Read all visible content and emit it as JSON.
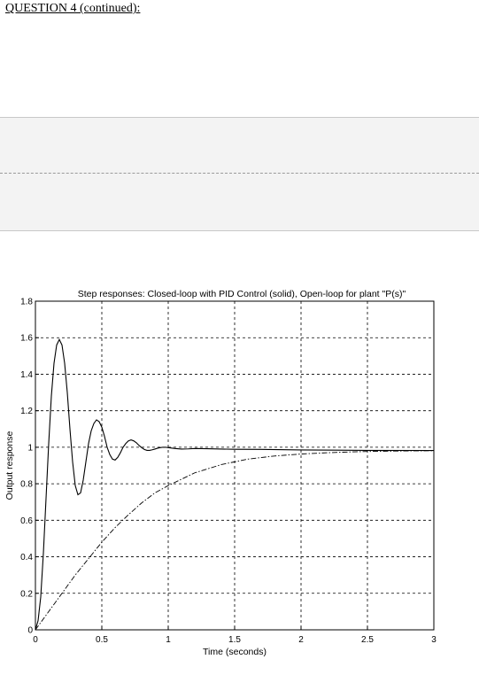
{
  "page": {
    "heading": "QUESTION 4 (continued):"
  },
  "colors": {
    "band": "#f3f3f3",
    "grid": "#000000",
    "line": "#000000"
  },
  "chart_data": {
    "type": "line",
    "title": "Step responses:  Closed-loop with PID Control (solid), Open-loop for plant \"P(s)\"",
    "xlabel": "Time (seconds)",
    "ylabel": "Output response",
    "xlim": [
      0,
      3
    ],
    "ylim": [
      0,
      1.8
    ],
    "grid": true,
    "legend": "none",
    "x_ticks": [
      0,
      0.5,
      1,
      1.5,
      2,
      2.5,
      3
    ],
    "x_tick_labels": [
      "0",
      "0.5",
      "1",
      "1.5",
      "2",
      "2.5",
      "3"
    ],
    "y_ticks": [
      0,
      0.2,
      0.4,
      0.6,
      0.8,
      1,
      1.2,
      1.4,
      1.6,
      1.8
    ],
    "y_tick_labels": [
      "0",
      "0.2",
      "0.4",
      "0.6",
      "0.8",
      "1",
      "1.2",
      "1.4",
      "1.6",
      "1.8"
    ],
    "series": [
      {
        "style": "solid",
        "x": [
          0,
          0.02,
          0.04,
          0.06,
          0.08,
          0.1,
          0.12,
          0.14,
          0.16,
          0.18,
          0.2,
          0.22,
          0.24,
          0.26,
          0.28,
          0.3,
          0.32,
          0.34,
          0.36,
          0.38,
          0.4,
          0.42,
          0.44,
          0.46,
          0.48,
          0.5,
          0.52,
          0.54,
          0.56,
          0.58,
          0.6,
          0.62,
          0.64,
          0.66,
          0.68,
          0.7,
          0.72,
          0.74,
          0.76,
          0.78,
          0.8,
          0.82,
          0.84,
          0.86,
          0.88,
          0.9,
          0.92,
          0.94,
          0.96,
          0.98,
          1.0,
          1.05,
          1.1,
          1.15,
          1.2,
          1.3,
          1.4,
          1.5,
          1.7,
          2.0,
          2.5,
          3.0
        ],
        "y": [
          0,
          0.05,
          0.18,
          0.42,
          0.72,
          1.02,
          1.28,
          1.46,
          1.56,
          1.59,
          1.56,
          1.46,
          1.3,
          1.1,
          0.92,
          0.79,
          0.74,
          0.75,
          0.82,
          0.92,
          1.02,
          1.09,
          1.13,
          1.15,
          1.14,
          1.11,
          1.06,
          1.0,
          0.96,
          0.935,
          0.93,
          0.945,
          0.97,
          1.0,
          1.02,
          1.035,
          1.04,
          1.035,
          1.025,
          1.01,
          0.998,
          0.988,
          0.983,
          0.983,
          0.986,
          0.99,
          0.995,
          0.998,
          1.0,
          1.0,
          0.998,
          0.993,
          0.99,
          0.991,
          0.993,
          0.992,
          0.99,
          0.989,
          0.988,
          0.985,
          0.983,
          0.982
        ]
      },
      {
        "style": "dash-dot",
        "x": [
          0,
          0.05,
          0.1,
          0.15,
          0.2,
          0.3,
          0.4,
          0.5,
          0.6,
          0.7,
          0.8,
          0.9,
          1.0,
          1.2,
          1.4,
          1.6,
          1.8,
          2.0,
          2.2,
          2.4,
          2.6,
          2.8,
          3.0
        ],
        "y": [
          0,
          0.05,
          0.1,
          0.15,
          0.2,
          0.3,
          0.39,
          0.48,
          0.56,
          0.63,
          0.695,
          0.75,
          0.79,
          0.86,
          0.905,
          0.935,
          0.952,
          0.963,
          0.97,
          0.975,
          0.978,
          0.98,
          0.981
        ]
      }
    ]
  }
}
